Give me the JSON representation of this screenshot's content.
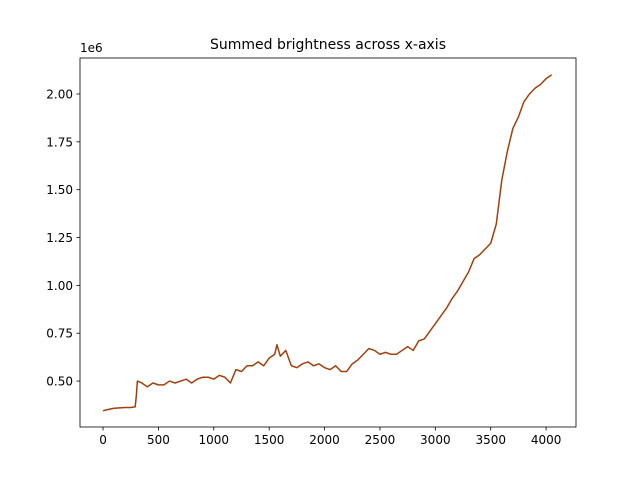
{
  "chart_data": {
    "type": "line",
    "title": "Summed brightness across x-axis",
    "offset_text": "1e6",
    "x": [
      0,
      50,
      100,
      150,
      200,
      250,
      290,
      300,
      310,
      350,
      400,
      450,
      500,
      550,
      600,
      650,
      700,
      750,
      800,
      850,
      900,
      950,
      1000,
      1050,
      1100,
      1150,
      1200,
      1250,
      1300,
      1350,
      1400,
      1450,
      1500,
      1550,
      1570,
      1600,
      1650,
      1700,
      1750,
      1800,
      1850,
      1900,
      1950,
      2000,
      2050,
      2100,
      2150,
      2200,
      2250,
      2300,
      2350,
      2400,
      2450,
      2500,
      2550,
      2600,
      2650,
      2700,
      2750,
      2800,
      2850,
      2900,
      2950,
      3000,
      3050,
      3100,
      3150,
      3200,
      3250,
      3300,
      3350,
      3400,
      3450,
      3500,
      3550,
      3600,
      3650,
      3700,
      3750,
      3800,
      3850,
      3900,
      3950,
      4000,
      4050
    ],
    "series": [
      {
        "color": "#a0400f",
        "values": [
          0.345,
          0.352,
          0.358,
          0.36,
          0.362,
          0.362,
          0.365,
          0.42,
          0.5,
          0.49,
          0.47,
          0.49,
          0.48,
          0.48,
          0.5,
          0.49,
          0.5,
          0.51,
          0.49,
          0.51,
          0.52,
          0.52,
          0.51,
          0.53,
          0.52,
          0.49,
          0.56,
          0.55,
          0.58,
          0.58,
          0.6,
          0.58,
          0.62,
          0.64,
          0.69,
          0.63,
          0.66,
          0.58,
          0.57,
          0.59,
          0.6,
          0.58,
          0.59,
          0.57,
          0.56,
          0.58,
          0.55,
          0.55,
          0.59,
          0.61,
          0.64,
          0.67,
          0.66,
          0.64,
          0.65,
          0.64,
          0.64,
          0.66,
          0.68,
          0.66,
          0.71,
          0.72,
          0.76,
          0.8,
          0.84,
          0.88,
          0.93,
          0.97,
          1.02,
          1.07,
          1.14,
          1.16,
          1.19,
          1.22,
          1.32,
          1.55,
          1.7,
          1.82,
          1.88,
          1.96,
          2.0,
          2.03,
          2.05,
          2.08,
          2.1
        ]
      }
    ],
    "xlim": [
      -208,
      4270
    ],
    "ylim": [
      0.26,
      2.188
    ],
    "xticks": [
      0,
      500,
      1000,
      1500,
      2000,
      2500,
      3000,
      3500,
      4000
    ],
    "yticks": [
      {
        "value": 0.5,
        "label": "0.50"
      },
      {
        "value": 0.75,
        "label": "0.75"
      },
      {
        "value": 1.0,
        "label": "1.00"
      },
      {
        "value": 1.25,
        "label": "1.25"
      },
      {
        "value": 1.5,
        "label": "1.50"
      },
      {
        "value": 1.75,
        "label": "1.75"
      },
      {
        "value": 2.0,
        "label": "2.00"
      }
    ]
  }
}
